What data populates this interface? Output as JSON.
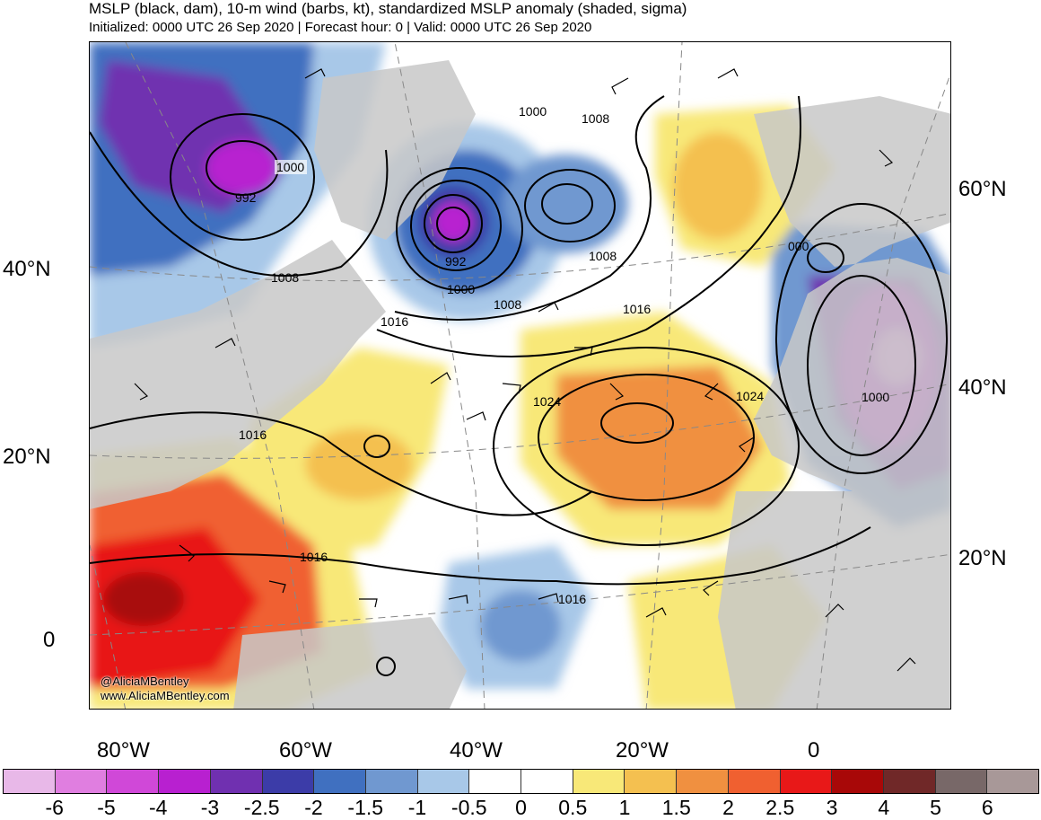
{
  "header": {
    "title": "MSLP (black, dam), 10-m wind (barbs, kt), standardized MSLP anomaly (shaded, sigma)",
    "subtitle": "Initialized: 0000 UTC 26 Sep 2020 | Forecast hour: 0 | Valid: 0000 UTC 26 Sep 2020"
  },
  "left_lat_labels": [
    "40°N",
    "20°N",
    "0"
  ],
  "right_lat_labels": [
    "60°N",
    "40°N",
    "20°N"
  ],
  "lon_labels": [
    "80°W",
    "60°W",
    "40°W",
    "20°W",
    "0"
  ],
  "credit": {
    "handle": "@AliciaMBentley",
    "website": "www.AliciaMBentley.com"
  },
  "contour_labels": [
    "1000",
    "992",
    "1008",
    "992",
    "1000",
    "1000",
    "1008",
    "1008",
    "1008",
    "1016",
    "1016",
    "1024",
    "1024",
    "1016",
    "1016",
    "1016",
    "000",
    "1000"
  ],
  "colorbar": {
    "labels": [
      "-6",
      "-5",
      "-4",
      "-3",
      "-2.5",
      "-2",
      "-1.5",
      "-1",
      "-0.5",
      "0",
      "0.5",
      "1",
      "1.5",
      "2",
      "2.5",
      "3",
      "4",
      "5",
      "6"
    ],
    "colors": [
      "#e8b8e8",
      "#e07ee0",
      "#d048d8",
      "#b820d0",
      "#7030b0",
      "#3c3ca8",
      "#4070c0",
      "#7098d0",
      "#a8c8e8",
      "#ffffff",
      "#ffffff",
      "#f8e878",
      "#f4c050",
      "#f09040",
      "#f06030",
      "#e81818",
      "#a80808",
      "#702828",
      "#786868",
      "#a89898"
    ]
  }
}
